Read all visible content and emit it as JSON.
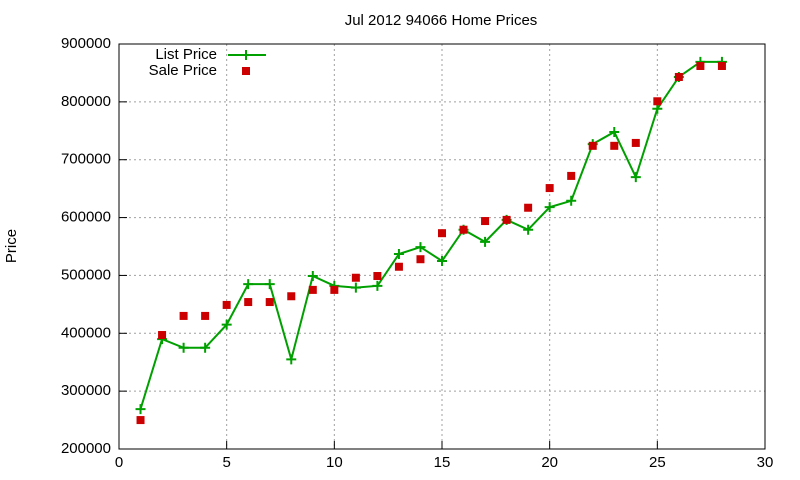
{
  "chart_data": {
    "type": "line",
    "title": "Jul 2012 94066 Home Prices",
    "y_label": "Price",
    "x": [
      1,
      2,
      3,
      4,
      5,
      6,
      7,
      8,
      9,
      10,
      11,
      12,
      13,
      14,
      15,
      16,
      17,
      18,
      19,
      20,
      21,
      22,
      23,
      24,
      25,
      26,
      27,
      28
    ],
    "series": [
      {
        "name": "List Price",
        "color": "#00a000",
        "marker": "plus",
        "line": true,
        "values": [
          269000,
          390000,
          375000,
          375000,
          415000,
          485000,
          485000,
          355000,
          499000,
          482000,
          479000,
          482000,
          537000,
          549000,
          525000,
          579000,
          558000,
          596000,
          579000,
          618000,
          629000,
          727000,
          748000,
          670000,
          788000,
          843000,
          869000,
          869000
        ]
      },
      {
        "name": "Sale Price",
        "color": "#cc0000",
        "marker": "square",
        "line": false,
        "values": [
          250000,
          397000,
          430000,
          430000,
          449000,
          454000,
          454000,
          464000,
          475000,
          475000,
          496000,
          499000,
          515000,
          528000,
          573000,
          579000,
          594000,
          596000,
          617000,
          651000,
          672000,
          724000,
          724000,
          729000,
          801000,
          843000,
          862000,
          862000
        ]
      }
    ],
    "xlim": [
      0,
      30
    ],
    "xticks": [
      0,
      5,
      10,
      15,
      20,
      25,
      30
    ],
    "ylim": [
      200000,
      900000
    ],
    "yticks": [
      200000,
      300000,
      400000,
      500000,
      600000,
      700000,
      800000,
      900000
    ],
    "grid": true,
    "legend": "top-left"
  }
}
